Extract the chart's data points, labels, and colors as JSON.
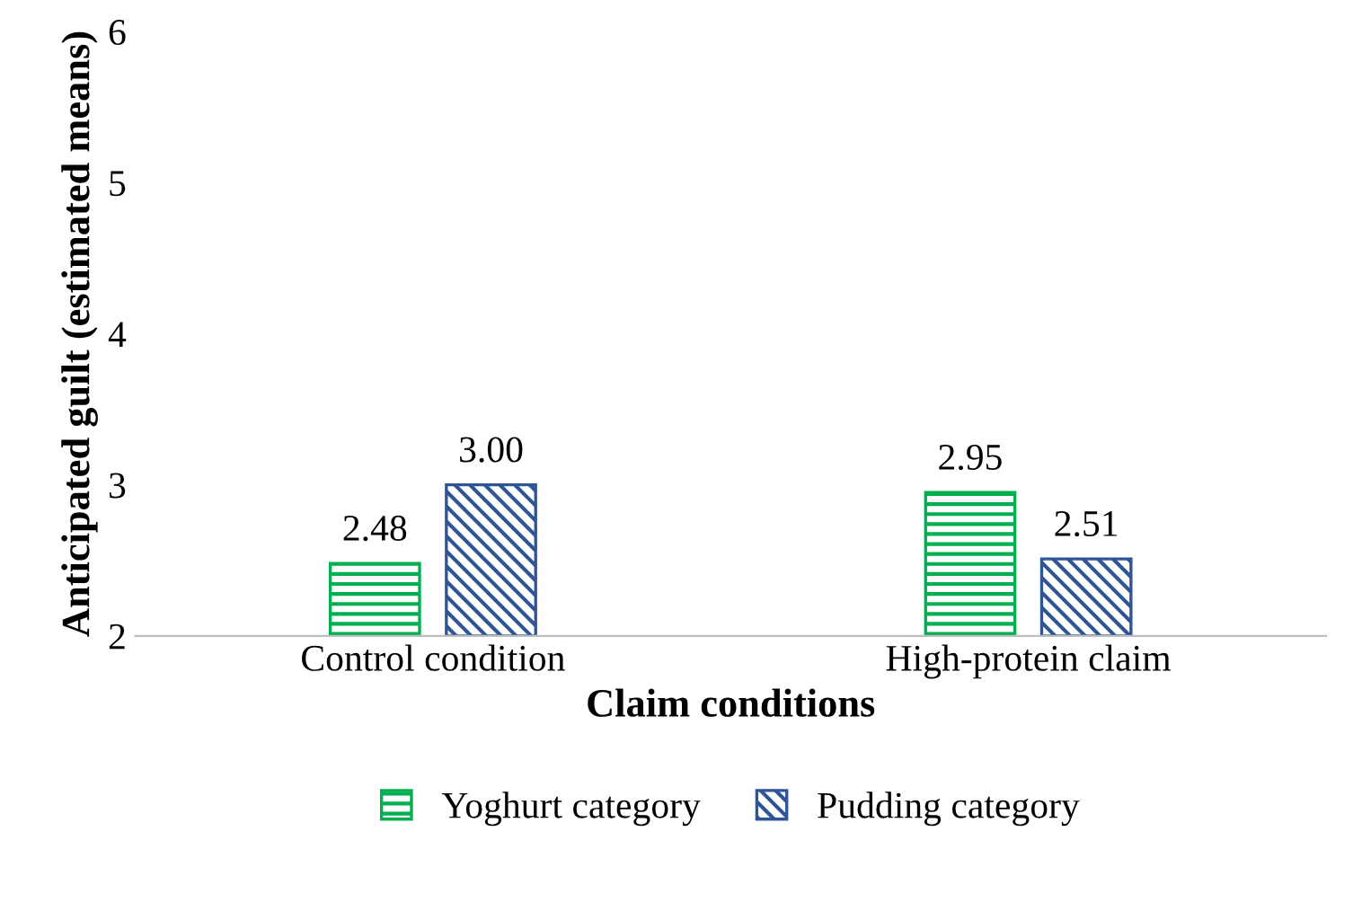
{
  "chart_data": {
    "type": "bar",
    "xlabel": "Claim conditions",
    "ylabel": "Anticipated guilt (estimated means)",
    "categories": [
      "Control condition",
      "High-protein claim"
    ],
    "series": [
      {
        "name": "Yoghurt category",
        "color": "#00b050",
        "values": [
          2.48,
          2.95
        ],
        "value_labels": [
          "2.48",
          "2.95"
        ]
      },
      {
        "name": "Pudding category",
        "color": "#2f5597",
        "values": [
          3.0,
          2.51
        ],
        "value_labels": [
          "3.00",
          "2.51"
        ]
      }
    ],
    "ylim": [
      2,
      6
    ],
    "yticks": [
      2,
      3,
      4,
      5,
      6
    ],
    "grid": false,
    "legend": "bottom"
  }
}
